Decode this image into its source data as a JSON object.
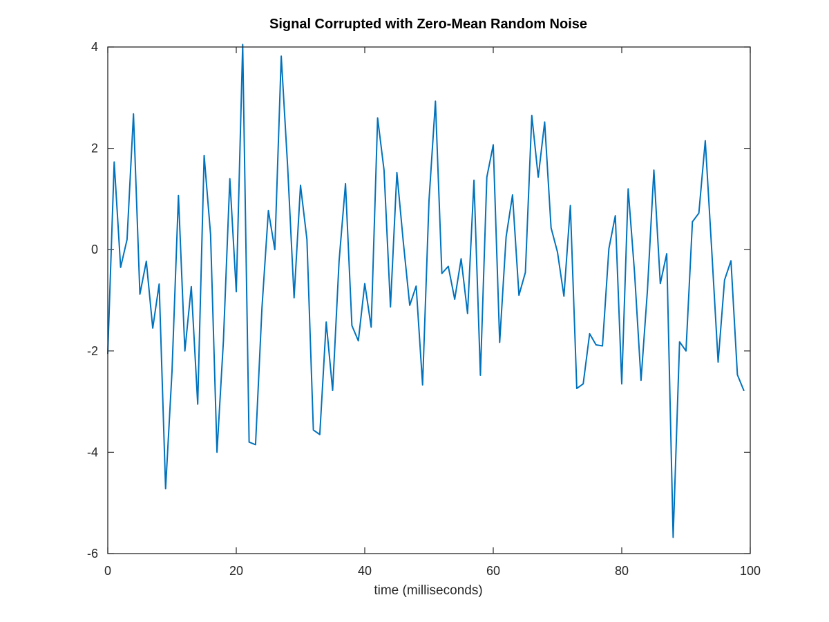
{
  "chart_data": {
    "type": "line",
    "title": "Signal Corrupted with Zero-Mean Random Noise",
    "xlabel": "time (milliseconds)",
    "ylabel": "",
    "xlim": [
      0,
      100
    ],
    "ylim": [
      -6,
      4
    ],
    "xticks": [
      0,
      20,
      40,
      60,
      80,
      100
    ],
    "yticks": [
      -6,
      -4,
      -2,
      0,
      2,
      4
    ],
    "grid": false,
    "box": true,
    "series": [
      {
        "color": "#0072bd",
        "x": [
          0,
          1,
          2,
          3,
          4,
          5,
          6,
          7,
          8,
          9,
          10,
          11,
          12,
          13,
          14,
          15,
          16,
          17,
          18,
          19,
          20,
          21,
          22,
          23,
          24,
          25,
          26,
          27,
          28,
          29,
          30,
          31,
          32,
          33,
          34,
          35,
          36,
          37,
          38,
          39,
          40,
          41,
          42,
          43,
          44,
          45,
          46,
          47,
          48,
          49,
          50,
          51,
          52,
          53,
          54,
          55,
          56,
          57,
          58,
          59,
          60,
          61,
          62,
          63,
          64,
          65,
          66,
          67,
          68,
          69,
          70,
          71,
          72,
          73,
          74,
          75,
          76,
          77,
          78,
          79,
          80,
          81,
          82,
          83,
          84,
          85,
          86,
          87,
          88,
          89,
          90,
          91,
          92,
          93,
          94,
          95,
          96,
          97,
          98,
          99
        ],
        "y": [
          -2.05,
          1.73,
          -0.35,
          0.2,
          2.68,
          -0.88,
          -0.23,
          -1.55,
          -0.68,
          -4.72,
          -2.4,
          1.07,
          -2.0,
          -0.73,
          -3.05,
          1.86,
          0.3,
          -4.0,
          -1.8,
          1.4,
          -0.83,
          4.05,
          -3.8,
          -3.85,
          -1.15,
          0.77,
          0.0,
          3.82,
          1.63,
          -0.95,
          1.27,
          0.2,
          -3.56,
          -3.65,
          -1.43,
          -2.78,
          -0.23,
          1.3,
          -1.5,
          -1.8,
          -0.67,
          -1.53,
          2.6,
          1.57,
          -1.13,
          1.52,
          0.15,
          -1.1,
          -0.72,
          -2.67,
          0.97,
          2.93,
          -0.47,
          -0.33,
          -0.98,
          -0.18,
          -1.26,
          1.37,
          -2.48,
          1.43,
          2.07,
          -1.83,
          0.25,
          1.08,
          -0.9,
          -0.45,
          2.65,
          1.43,
          2.52,
          0.43,
          -0.05,
          -0.92,
          0.87,
          -2.74,
          -2.65,
          -1.66,
          -1.88,
          -1.9,
          0.02,
          0.67,
          -2.65,
          1.2,
          -0.47,
          -2.58,
          -0.8,
          1.57,
          -0.67,
          -0.08,
          -5.68,
          -1.82,
          -2.0,
          0.55,
          0.72,
          2.15,
          0.0,
          -2.22,
          -0.6,
          -0.22,
          -2.47,
          -2.78
        ]
      }
    ]
  }
}
